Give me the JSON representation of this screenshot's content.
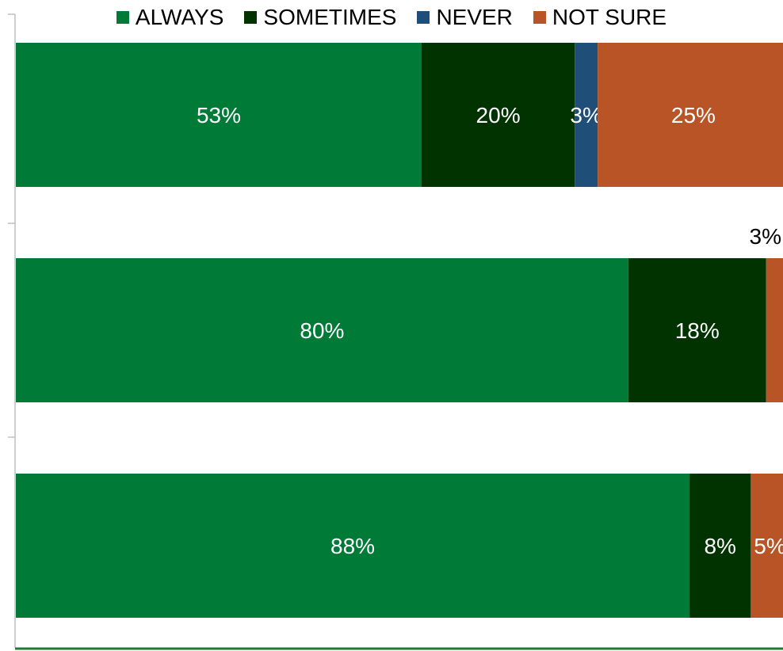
{
  "chart_data": {
    "type": "bar",
    "orientation": "horizontal",
    "stacked": true,
    "normalized": true,
    "categories": [
      "",
      "",
      ""
    ],
    "series": [
      {
        "name": "ALWAYS",
        "color": "#007A37",
        "values": [
          53,
          80,
          88
        ],
        "labels": [
          "53%",
          "80%",
          "88%"
        ]
      },
      {
        "name": "SOMETIMES",
        "color": "#003300",
        "values": [
          20,
          18,
          8
        ],
        "labels": [
          "20%",
          "18%",
          "8%"
        ]
      },
      {
        "name": "NEVER",
        "color": "#1F4E79",
        "values": [
          3,
          0,
          0
        ],
        "labels": [
          "3%",
          "",
          ""
        ]
      },
      {
        "name": "NOT SURE",
        "color": "#B85425",
        "values": [
          25,
          3,
          5
        ],
        "labels": [
          "25%",
          "3%",
          "5%"
        ]
      }
    ],
    "legend": "top-center",
    "grid": false,
    "xlim": [
      0,
      100
    ]
  }
}
